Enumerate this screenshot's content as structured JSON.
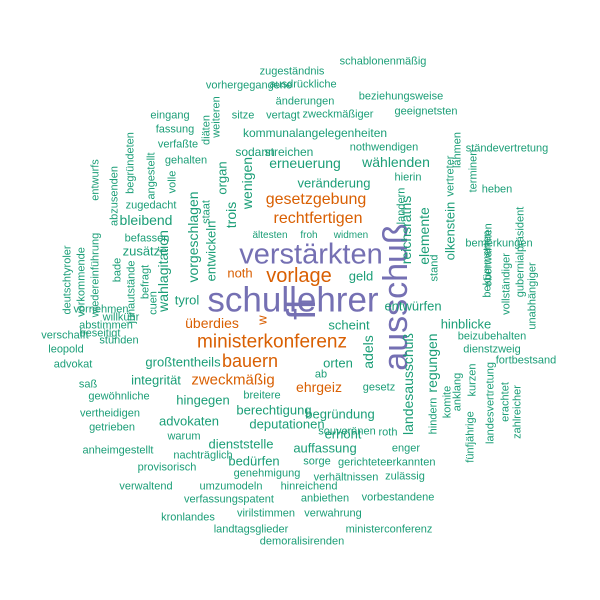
{
  "colors": {
    "teal": "#1b9e77",
    "orange": "#d95f02",
    "purple": "#7570b3"
  },
  "words": [
    {
      "text": "schullehrer",
      "color": "purple",
      "rotated": false
    },
    {
      "text": "ausschuß",
      "color": "purple",
      "rotated": true
    },
    {
      "text": "verstärkten",
      "color": "purple",
      "rotated": false
    },
    {
      "text": "fl",
      "color": "purple",
      "rotated": true
    },
    {
      "text": "ministerkonferenz",
      "color": "orange",
      "rotated": false
    },
    {
      "text": "bauern",
      "color": "orange",
      "rotated": false
    },
    {
      "text": "vorlage",
      "color": "orange",
      "rotated": false
    },
    {
      "text": "gesetzgebung",
      "color": "orange",
      "rotated": false
    },
    {
      "text": "rechtfertigen",
      "color": "orange",
      "rotated": false
    },
    {
      "text": "zweckmäßig",
      "color": "orange",
      "rotated": false
    },
    {
      "text": "überdies",
      "color": "orange",
      "rotated": false
    },
    {
      "text": "ehrgeiz",
      "color": "orange",
      "rotated": false
    },
    {
      "text": "noth",
      "color": "orange",
      "rotated": false
    },
    {
      "text": "w",
      "color": "orange",
      "rotated": true
    },
    {
      "text": "schablonenmäßig",
      "color": "teal",
      "rotated": false
    },
    {
      "text": "zugeständnis",
      "color": "teal",
      "rotated": false
    },
    {
      "text": "ausdrückliche",
      "color": "teal",
      "rotated": false
    },
    {
      "text": "vorhergegangene",
      "color": "teal",
      "rotated": false
    },
    {
      "text": "änderungen",
      "color": "teal",
      "rotated": false
    },
    {
      "text": "beziehungsweise",
      "color": "teal",
      "rotated": false
    },
    {
      "text": "sitze",
      "color": "teal",
      "rotated": false
    },
    {
      "text": "vertagt",
      "color": "teal",
      "rotated": false
    },
    {
      "text": "zweckmäßiger",
      "color": "teal",
      "rotated": false
    },
    {
      "text": "geeignetsten",
      "color": "teal",
      "rotated": false
    },
    {
      "text": "eingang",
      "color": "teal",
      "rotated": false
    },
    {
      "text": "fassung",
      "color": "teal",
      "rotated": false
    },
    {
      "text": "verfaßte",
      "color": "teal",
      "rotated": false
    },
    {
      "text": "gehalten",
      "color": "teal",
      "rotated": false
    },
    {
      "text": "kommunalangelegenheiten",
      "color": "teal",
      "rotated": false
    },
    {
      "text": "nothwendigen",
      "color": "teal",
      "rotated": false
    },
    {
      "text": "ständevertretung",
      "color": "teal",
      "rotated": false
    },
    {
      "text": "sodann",
      "color": "teal",
      "rotated": false
    },
    {
      "text": "streichen",
      "color": "teal",
      "rotated": false
    },
    {
      "text": "erneuerung",
      "color": "teal",
      "rotated": false
    },
    {
      "text": "wählenden",
      "color": "teal",
      "rotated": false
    },
    {
      "text": "hierin",
      "color": "teal",
      "rotated": false
    },
    {
      "text": "heben",
      "color": "teal",
      "rotated": false
    },
    {
      "text": "veränderung",
      "color": "teal",
      "rotated": false
    },
    {
      "text": "bleibend",
      "color": "teal",
      "rotated": false
    },
    {
      "text": "zusätze",
      "color": "teal",
      "rotated": false
    },
    {
      "text": "befassen",
      "color": "teal",
      "rotated": false
    },
    {
      "text": "zugedacht",
      "color": "teal",
      "rotated": false
    },
    {
      "text": "ältesten",
      "color": "teal",
      "rotated": false
    },
    {
      "text": "froh",
      "color": "teal",
      "rotated": false
    },
    {
      "text": "widmen",
      "color": "teal",
      "rotated": false
    },
    {
      "text": "geld",
      "color": "teal",
      "rotated": false
    },
    {
      "text": "tyrol",
      "color": "teal",
      "rotated": false
    },
    {
      "text": "entwürfen",
      "color": "teal",
      "rotated": false
    },
    {
      "text": "bemerkungen",
      "color": "teal",
      "rotated": false
    },
    {
      "text": "scheint",
      "color": "teal",
      "rotated": false
    },
    {
      "text": "hinblicke",
      "color": "teal",
      "rotated": false
    },
    {
      "text": "großtentheils",
      "color": "teal",
      "rotated": false
    },
    {
      "text": "orten",
      "color": "teal",
      "rotated": false
    },
    {
      "text": "integrität",
      "color": "teal",
      "rotated": false
    },
    {
      "text": "ab",
      "color": "teal",
      "rotated": false
    },
    {
      "text": "gesetz",
      "color": "teal",
      "rotated": false
    },
    {
      "text": "dienstzweig",
      "color": "teal",
      "rotated": false
    },
    {
      "text": "fortbestsand",
      "color": "teal",
      "rotated": false
    },
    {
      "text": "hingegen",
      "color": "teal",
      "rotated": false
    },
    {
      "text": "breitere",
      "color": "teal",
      "rotated": false
    },
    {
      "text": "begründung",
      "color": "teal",
      "rotated": false
    },
    {
      "text": "berechtigung",
      "color": "teal",
      "rotated": false
    },
    {
      "text": "advokaten",
      "color": "teal",
      "rotated": false
    },
    {
      "text": "deputationen",
      "color": "teal",
      "rotated": false
    },
    {
      "text": "erhöht",
      "color": "teal",
      "rotated": false
    },
    {
      "text": "roth",
      "color": "teal",
      "rotated": false
    },
    {
      "text": "warum",
      "color": "teal",
      "rotated": false
    },
    {
      "text": "dienststelle",
      "color": "teal",
      "rotated": false
    },
    {
      "text": "auffassung",
      "color": "teal",
      "rotated": false
    },
    {
      "text": "enger",
      "color": "teal",
      "rotated": false
    },
    {
      "text": "bedürfen",
      "color": "teal",
      "rotated": false
    },
    {
      "text": "souveränen",
      "color": "teal",
      "rotated": false
    },
    {
      "text": "nachträglich",
      "color": "teal",
      "rotated": false
    },
    {
      "text": "genehmigung",
      "color": "teal",
      "rotated": false
    },
    {
      "text": "sorge",
      "color": "teal",
      "rotated": false
    },
    {
      "text": "gerichteter",
      "color": "teal",
      "rotated": false
    },
    {
      "text": "erkannten",
      "color": "teal",
      "rotated": false
    },
    {
      "text": "provisorisch",
      "color": "teal",
      "rotated": false
    },
    {
      "text": "verhältnissen",
      "color": "teal",
      "rotated": false
    },
    {
      "text": "zulässig",
      "color": "teal",
      "rotated": false
    },
    {
      "text": "anheimgestellt",
      "color": "teal",
      "rotated": false
    },
    {
      "text": "verwaltend",
      "color": "teal",
      "rotated": false
    },
    {
      "text": "umzumodeln",
      "color": "teal",
      "rotated": false
    },
    {
      "text": "hinreichend",
      "color": "teal",
      "rotated": false
    },
    {
      "text": "verfassungspatent",
      "color": "teal",
      "rotated": false
    },
    {
      "text": "anbiethen",
      "color": "teal",
      "rotated": false
    },
    {
      "text": "vorbestandene",
      "color": "teal",
      "rotated": false
    },
    {
      "text": "virilstimmen",
      "color": "teal",
      "rotated": false
    },
    {
      "text": "verwahrung",
      "color": "teal",
      "rotated": false
    },
    {
      "text": "kronlandes",
      "color": "teal",
      "rotated": false
    },
    {
      "text": "landtagsglieder",
      "color": "teal",
      "rotated": false
    },
    {
      "text": "ministerconferenz",
      "color": "teal",
      "rotated": false
    },
    {
      "text": "demoralisirenden",
      "color": "teal",
      "rotated": false
    },
    {
      "text": "verschafft",
      "color": "teal",
      "rotated": false
    },
    {
      "text": "leopold",
      "color": "teal",
      "rotated": false
    },
    {
      "text": "advokat",
      "color": "teal",
      "rotated": false
    },
    {
      "text": "saß",
      "color": "teal",
      "rotated": false
    },
    {
      "text": "gewöhnliche",
      "color": "teal",
      "rotated": false
    },
    {
      "text": "vertheidigen",
      "color": "teal",
      "rotated": false
    },
    {
      "text": "getrieben",
      "color": "teal",
      "rotated": false
    },
    {
      "text": "stünden",
      "color": "teal",
      "rotated": false
    },
    {
      "text": "abstimmen",
      "color": "teal",
      "rotated": false
    },
    {
      "text": "willkühr",
      "color": "teal",
      "rotated": false
    },
    {
      "text": "vornehmen",
      "color": "teal",
      "rotated": false
    },
    {
      "text": "beseitigt",
      "color": "teal",
      "rotated": false
    },
    {
      "text": "deutschtyroler",
      "color": "teal",
      "rotated": true
    },
    {
      "text": "vorkommende",
      "color": "teal",
      "rotated": true
    },
    {
      "text": "wiedereinführung",
      "color": "teal",
      "rotated": true
    },
    {
      "text": "entwurfs",
      "color": "teal",
      "rotated": true
    },
    {
      "text": "abzusenden",
      "color": "teal",
      "rotated": true
    },
    {
      "text": "begründeten",
      "color": "teal",
      "rotated": true
    },
    {
      "text": "angestellt",
      "color": "teal",
      "rotated": true
    },
    {
      "text": "bade",
      "color": "teal",
      "rotated": true
    },
    {
      "text": "befragt",
      "color": "teal",
      "rotated": true
    },
    {
      "text": "junautstände",
      "color": "teal",
      "rotated": true
    },
    {
      "text": "cuen",
      "color": "teal",
      "rotated": true
    },
    {
      "text": "volle",
      "color": "teal",
      "rotated": true
    },
    {
      "text": "diäten",
      "color": "teal",
      "rotated": true
    },
    {
      "text": "weiteren",
      "color": "teal",
      "rotated": true
    },
    {
      "text": "staat",
      "color": "teal",
      "rotated": true
    },
    {
      "text": "organ",
      "color": "teal",
      "rotated": true
    },
    {
      "text": "wenigen",
      "color": "teal",
      "rotated": true
    },
    {
      "text": "trois",
      "color": "teal",
      "rotated": true
    },
    {
      "text": "vorgeschlagen",
      "color": "teal",
      "rotated": true
    },
    {
      "text": "entwickeln",
      "color": "teal",
      "rotated": true
    },
    {
      "text": "wahlagitation",
      "color": "teal",
      "rotated": true
    },
    {
      "text": "reichsraths",
      "color": "teal",
      "rotated": true
    },
    {
      "text": "elemente",
      "color": "teal",
      "rotated": true
    },
    {
      "text": "landern",
      "color": "teal",
      "rotated": true
    },
    {
      "text": "olkenstein",
      "color": "teal",
      "rotated": true
    },
    {
      "text": "stand",
      "color": "teal",
      "rotated": true
    },
    {
      "text": "landesausschuß",
      "color": "teal",
      "rotated": true
    },
    {
      "text": "regungen",
      "color": "teal",
      "rotated": true
    },
    {
      "text": "adels",
      "color": "teal",
      "rotated": true
    },
    {
      "text": "vertreter",
      "color": "teal",
      "rotated": true
    },
    {
      "text": "lähmen",
      "color": "teal",
      "rotated": true
    },
    {
      "text": "terminen",
      "color": "teal",
      "rotated": true
    },
    {
      "text": "oberwähnten",
      "color": "teal",
      "rotated": true
    },
    {
      "text": "bekümmerten",
      "color": "teal",
      "rotated": true
    },
    {
      "text": "gubernialpräsident",
      "color": "teal",
      "rotated": true
    },
    {
      "text": "unabhängiger",
      "color": "teal",
      "rotated": true
    },
    {
      "text": "vollständiger",
      "color": "teal",
      "rotated": true
    },
    {
      "text": "beizubehalten",
      "color": "teal",
      "rotated": false
    },
    {
      "text": "kurzen",
      "color": "teal",
      "rotated": true
    },
    {
      "text": "erachtet",
      "color": "teal",
      "rotated": true
    },
    {
      "text": "zahlreicher",
      "color": "teal",
      "rotated": true
    },
    {
      "text": "landesvertretung",
      "color": "teal",
      "rotated": true
    },
    {
      "text": "fünfjährige",
      "color": "teal",
      "rotated": true
    },
    {
      "text": "anklang",
      "color": "teal",
      "rotated": true
    },
    {
      "text": "komite",
      "color": "teal",
      "rotated": true
    },
    {
      "text": "hindern",
      "color": "teal",
      "rotated": true
    }
  ]
}
